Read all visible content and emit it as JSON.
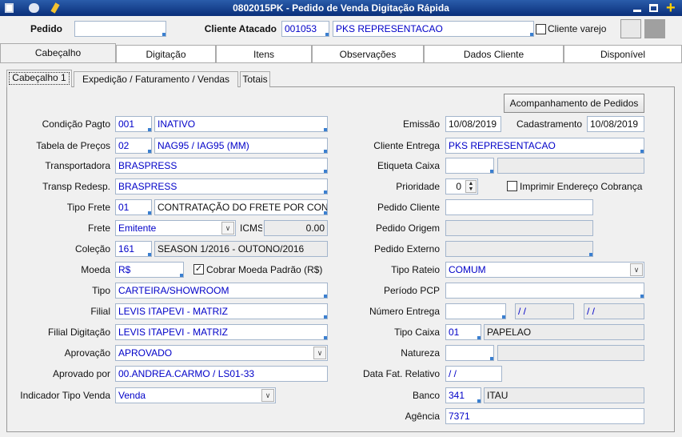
{
  "window": {
    "title": "0802015PK - Pedido de Venda Digitação Rápida"
  },
  "header": {
    "pedido_label": "Pedido",
    "cliente_label": "Cliente Atacado",
    "cliente_code": "001053",
    "cliente_name": "PKS REPRESENTACAO",
    "cliente_varejo": "Cliente varejo"
  },
  "tabs": [
    "Cabeçalho",
    "Digitação",
    "Itens",
    "Observações",
    "Dados Cliente",
    "Disponível"
  ],
  "subtabs": [
    "Cabeçalho 1",
    "Expedição / Faturamento / Vendas",
    "Totais"
  ],
  "button": "Acompanhamento de Pedidos",
  "left_fields": [
    {
      "label": "Condição Pagto",
      "code": "001",
      "value": "INATIVO"
    },
    {
      "label": "Tabela de Preços",
      "code": "02",
      "value": "NAG95 / IAG95 (MM)"
    },
    {
      "label": "Transportadora",
      "value": "BRASPRESS"
    },
    {
      "label": "Transp Redesp.",
      "value": "BRASPRESS"
    },
    {
      "label": "Tipo Frete",
      "code": "01",
      "value": "CONTRATAÇÃO DO FRETE POR CONTA"
    },
    {
      "label": "Frete",
      "value": "Emitente",
      "extra_label": "ICMS",
      "extra_value": "0.00"
    },
    {
      "label": "Coleção",
      "code": "161",
      "value": "SEASON 1/2016 - OUTONO/2016"
    },
    {
      "label": "Moeda",
      "value": "R$",
      "check_label": "Cobrar Moeda Padrão (R$)",
      "checked": true
    },
    {
      "label": "Tipo",
      "value": "CARTEIRA/SHOWROOM"
    },
    {
      "label": "Filial",
      "value": "LEVIS ITAPEVI - MATRIZ"
    },
    {
      "label": "Filial Digitação",
      "value": "LEVIS ITAPEVI - MATRIZ"
    },
    {
      "label": "Aprovação",
      "value": "APROVADO"
    },
    {
      "label": "Aprovado por",
      "value": "00.ANDREA.CARMO / LS01-33"
    },
    {
      "label": "Indicador Tipo Venda",
      "value": "Venda"
    }
  ],
  "right_fields": [
    {
      "label": "Emissão",
      "value": "10/08/2019",
      "extra_label": "Cadastramento",
      "extra_value": "10/08/2019"
    },
    {
      "label": "Cliente Entrega",
      "value": "PKS REPRESENTACAO"
    },
    {
      "label": "Etiqueta Caixa"
    },
    {
      "label": "Prioridade",
      "value": "0",
      "check_label": "Imprimir Endereço Cobrança",
      "checked": false
    },
    {
      "label": "Pedido Cliente"
    },
    {
      "label": "Pedido Origem"
    },
    {
      "label": "Pedido Externo"
    },
    {
      "label": "Tipo Rateio",
      "value": "COMUM"
    },
    {
      "label": "Período PCP"
    },
    {
      "label": "Número Entrega",
      "value": "/ /",
      "extra_value": "/ /"
    },
    {
      "label": "Tipo Caixa",
      "code": "01",
      "value": "PAPELAO"
    },
    {
      "label": "Natureza"
    },
    {
      "label": "Data Fat. Relativo",
      "value": "/ /"
    },
    {
      "label": "Banco",
      "code": "341",
      "value": "ITAU"
    },
    {
      "label": "Agência",
      "value": "7371"
    }
  ]
}
